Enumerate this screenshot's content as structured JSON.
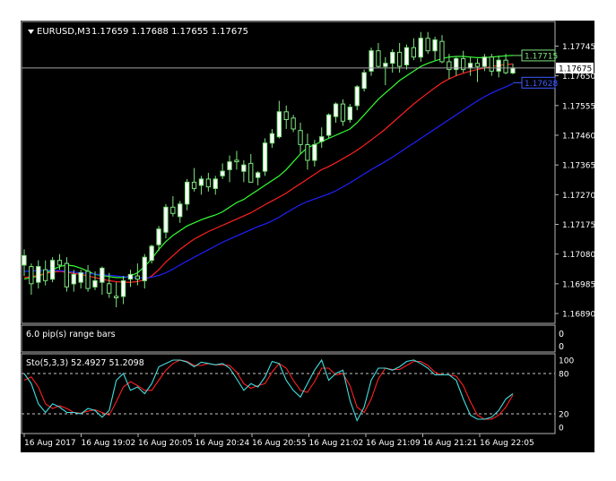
{
  "chart_data": {
    "type": "candlestick",
    "symbol_label": "EURUSD,M3",
    "ohlc_header": "1.17659 1.17688 1.17655 1.17675",
    "price_axis": {
      "ylim": [
        1.1687,
        1.17795
      ],
      "ticks": [
        "1.17745",
        "1.17650",
        "1.17555",
        "1.17460",
        "1.17365",
        "1.17270",
        "1.17175",
        "1.17080",
        "1.16985",
        "1.16890"
      ],
      "current_price": 1.17675,
      "current_price_label": "1.17675",
      "current_price_color": "#ffffff"
    },
    "right_markers": [
      {
        "value": 1.17715,
        "label": "1.17715",
        "color": "#7fe57f"
      },
      {
        "value": 1.17628,
        "label": "1.17628",
        "color": "#3d5cff"
      }
    ],
    "time_axis": {
      "labels": [
        "16 Aug 2017",
        "16 Aug 19:02",
        "16 Aug 20:05",
        "16 Aug 20:24",
        "16 Aug 20:55",
        "16 Aug 21:02",
        "16 Aug 21:09",
        "16 Aug 21:21",
        "16 Aug 22:05"
      ]
    },
    "colors": {
      "background": "#000000",
      "bull_candle": "#ffffff",
      "bear_candle": "#000000",
      "candle_outline": "#7fe57f",
      "ma_fast": "#33ff33",
      "ma_mid": "#ff2020",
      "ma_slow": "#2020ff",
      "stoch_main": "#44dddd",
      "stoch_signal": "#ff2020"
    },
    "candles": [
      [
        1.17045,
        1.17095,
        1.1701,
        1.17075
      ],
      [
        1.1704,
        1.1705,
        1.1695,
        1.16985
      ],
      [
        1.1699,
        1.1706,
        1.1697,
        1.1704
      ],
      [
        1.1703,
        1.1706,
        1.1698,
        1.16995
      ],
      [
        1.17,
        1.1707,
        1.1699,
        1.1706
      ],
      [
        1.1706,
        1.1708,
        1.1703,
        1.17045
      ],
      [
        1.1705,
        1.1707,
        1.1696,
        1.16975
      ],
      [
        1.16985,
        1.1703,
        1.1696,
        1.17015
      ],
      [
        1.1699,
        1.1703,
        1.1697,
        1.1702
      ],
      [
        1.17025,
        1.17045,
        1.1696,
        1.1697
      ],
      [
        1.16975,
        1.17025,
        1.16965,
        1.16995
      ],
      [
        1.1699,
        1.1704,
        1.1695,
        1.17035
      ],
      [
        1.16985,
        1.1702,
        1.1694,
        1.16955
      ],
      [
        1.16945,
        1.1699,
        1.1691,
        1.1694
      ],
      [
        1.16945,
        1.1701,
        1.1692,
        1.16995
      ],
      [
        1.17,
        1.1703,
        1.16975,
        1.17015
      ],
      [
        1.1701,
        1.1705,
        1.1698,
        1.17
      ],
      [
        1.16995,
        1.1708,
        1.1697,
        1.1707
      ],
      [
        1.1706,
        1.1711,
        1.1705,
        1.17105
      ],
      [
        1.1711,
        1.1717,
        1.1709,
        1.1716
      ],
      [
        1.1715,
        1.1724,
        1.1713,
        1.1723
      ],
      [
        1.1723,
        1.17265,
        1.172,
        1.1721
      ],
      [
        1.172,
        1.1725,
        1.1718,
        1.1724
      ],
      [
        1.1724,
        1.1732,
        1.1722,
        1.1731
      ],
      [
        1.1731,
        1.17355,
        1.1728,
        1.1729
      ],
      [
        1.173,
        1.1733,
        1.1727,
        1.1732
      ],
      [
        1.1732,
        1.1734,
        1.1728,
        1.17295
      ],
      [
        1.1729,
        1.1733,
        1.1727,
        1.1732
      ],
      [
        1.1733,
        1.1737,
        1.1732,
        1.17345
      ],
      [
        1.1735,
        1.17395,
        1.1731,
        1.17375
      ],
      [
        1.1738,
        1.1741,
        1.1735,
        1.17375
      ],
      [
        1.17345,
        1.1738,
        1.1731,
        1.17365
      ],
      [
        1.1737,
        1.174,
        1.1731,
        1.1731
      ],
      [
        1.17325,
        1.17345,
        1.173,
        1.1734
      ],
      [
        1.17345,
        1.1745,
        1.1733,
        1.17435
      ],
      [
        1.17435,
        1.1748,
        1.1742,
        1.17465
      ],
      [
        1.17455,
        1.1757,
        1.1745,
        1.17535
      ],
      [
        1.17535,
        1.17555,
        1.1748,
        1.1751
      ],
      [
        1.17515,
        1.17525,
        1.1747,
        1.1748
      ],
      [
        1.17475,
        1.175,
        1.174,
        1.1743
      ],
      [
        1.1743,
        1.17465,
        1.1735,
        1.1738
      ],
      [
        1.1738,
        1.17445,
        1.1736,
        1.1743
      ],
      [
        1.1744,
        1.17485,
        1.1742,
        1.17455
      ],
      [
        1.1746,
        1.1753,
        1.1745,
        1.17525
      ],
      [
        1.1752,
        1.17565,
        1.175,
        1.1756
      ],
      [
        1.1756,
        1.17575,
        1.1749,
        1.17505
      ],
      [
        1.1751,
        1.1756,
        1.175,
        1.1755
      ],
      [
        1.17555,
        1.1762,
        1.1754,
        1.17615
      ],
      [
        1.1761,
        1.1767,
        1.176,
        1.1766
      ],
      [
        1.17665,
        1.1774,
        1.1765,
        1.1773
      ],
      [
        1.1773,
        1.17755,
        1.17675,
        1.1768
      ],
      [
        1.1768,
        1.1771,
        1.1762,
        1.1769
      ],
      [
        1.1769,
        1.17735,
        1.1766,
        1.17725
      ],
      [
        1.17725,
        1.17755,
        1.1766,
        1.1768
      ],
      [
        1.17685,
        1.1775,
        1.1767,
        1.1774
      ],
      [
        1.1774,
        1.1777,
        1.177,
        1.1771
      ],
      [
        1.1771,
        1.1779,
        1.17695,
        1.1777
      ],
      [
        1.1777,
        1.1779,
        1.1772,
        1.1773
      ],
      [
        1.1773,
        1.17775,
        1.177,
        1.17765
      ],
      [
        1.1776,
        1.1778,
        1.1769,
        1.17695
      ],
      [
        1.17695,
        1.1772,
        1.1764,
        1.1767
      ],
      [
        1.1767,
        1.1771,
        1.1765,
        1.17705
      ],
      [
        1.17705,
        1.1773,
        1.1766,
        1.1767
      ],
      [
        1.17675,
        1.1771,
        1.1765,
        1.1769
      ],
      [
        1.1769,
        1.17705,
        1.1763,
        1.1768
      ],
      [
        1.1768,
        1.1772,
        1.17665,
        1.1771
      ],
      [
        1.1771,
        1.1772,
        1.1765,
        1.17665
      ],
      [
        1.17665,
        1.17715,
        1.17645,
        1.177
      ],
      [
        1.177,
        1.1772,
        1.17655,
        1.1766
      ],
      [
        1.17659,
        1.17688,
        1.17655,
        1.17675
      ]
    ],
    "moving_averages": [
      {
        "color": "#33ff33",
        "values": [
          1.17,
          1.17005,
          1.1701,
          1.17018,
          1.1703,
          1.1704,
          1.17045,
          1.17042,
          1.17035,
          1.17025,
          1.17015,
          1.17012,
          1.17008,
          1.17005,
          1.17005,
          1.1701,
          1.1702,
          1.1704,
          1.17065,
          1.17095,
          1.1712,
          1.1714,
          1.17155,
          1.1717,
          1.1718,
          1.1719,
          1.17198,
          1.17205,
          1.17215,
          1.1723,
          1.17245,
          1.17255,
          1.1727,
          1.17285,
          1.173,
          1.17315,
          1.1733,
          1.1735,
          1.17375,
          1.174,
          1.1742,
          1.1743,
          1.1744,
          1.1745,
          1.1746,
          1.1747,
          1.1748,
          1.175,
          1.17525,
          1.1755,
          1.17575,
          1.17595,
          1.17615,
          1.17635,
          1.1765,
          1.17665,
          1.1768,
          1.1769,
          1.17698,
          1.17705,
          1.1771,
          1.17712,
          1.17712,
          1.1771,
          1.17708,
          1.17708,
          1.1771,
          1.17712,
          1.17714,
          1.17715
        ]
      },
      {
        "color": "#ff2020",
        "values": [
          1.17005,
          1.17008,
          1.17012,
          1.17018,
          1.17022,
          1.17025,
          1.17022,
          1.17018,
          1.17015,
          1.1701,
          1.17005,
          1.17,
          1.16995,
          1.16992,
          1.1699,
          1.1699,
          1.16992,
          1.16998,
          1.1701,
          1.1703,
          1.17055,
          1.17075,
          1.17095,
          1.17112,
          1.17128,
          1.1714,
          1.17152,
          1.17162,
          1.17172,
          1.17182,
          1.17192,
          1.17202,
          1.17212,
          1.17225,
          1.17238,
          1.1725,
          1.17262,
          1.17275,
          1.1729,
          1.17305,
          1.1732,
          1.17335,
          1.1735,
          1.1736,
          1.17372,
          1.17385,
          1.17398,
          1.17412,
          1.17428,
          1.17445,
          1.17462,
          1.1748,
          1.175,
          1.1752,
          1.1754,
          1.1756,
          1.17578,
          1.17595,
          1.17612,
          1.17628,
          1.1764,
          1.1765,
          1.17658,
          1.17665,
          1.1767,
          1.17675,
          1.1768,
          1.17683,
          1.17686,
          1.17688
        ]
      },
      {
        "color": "#2020ff",
        "values": [
          1.17025,
          1.17026,
          1.17027,
          1.17028,
          1.17028,
          1.17027,
          1.17025,
          1.17022,
          1.1702,
          1.17018,
          1.17016,
          1.17014,
          1.17012,
          1.1701,
          1.17008,
          1.17006,
          1.17004,
          1.17004,
          1.17006,
          1.17012,
          1.1702,
          1.17032,
          1.17045,
          1.17058,
          1.1707,
          1.17082,
          1.17094,
          1.17106,
          1.17118,
          1.17128,
          1.17138,
          1.17148,
          1.17158,
          1.17168,
          1.17176,
          1.17186,
          1.17198,
          1.17212,
          1.17225,
          1.17238,
          1.17248,
          1.17256,
          1.17264,
          1.17272,
          1.17282,
          1.17295,
          1.17308,
          1.17322,
          1.17336,
          1.1735,
          1.17363,
          1.17376,
          1.1739,
          1.17405,
          1.1742,
          1.17435,
          1.1745,
          1.17465,
          1.1748,
          1.17495,
          1.1751,
          1.17525,
          1.1754,
          1.17555,
          1.1757,
          1.17583,
          1.17595,
          1.17605,
          1.17615,
          1.17625
        ]
      }
    ],
    "middle_panel": {
      "label": "6.0 pip(s) range bars",
      "ticks": [
        "0",
        "0"
      ]
    },
    "stochastic": {
      "label": "Sto(5,3,3) 52.4927 51.2098",
      "ylim": [
        0,
        100
      ],
      "ticks": [
        100,
        80,
        20,
        0
      ],
      "levels": [
        80,
        20
      ],
      "main": [
        80,
        65,
        35,
        22,
        35,
        30,
        22,
        22,
        20,
        28,
        25,
        15,
        25,
        70,
        80,
        55,
        60,
        50,
        65,
        90,
        95,
        100,
        100,
        97,
        90,
        97,
        95,
        93,
        95,
        88,
        72,
        55,
        65,
        60,
        75,
        98,
        95,
        70,
        55,
        45,
        65,
        85,
        100,
        70,
        80,
        85,
        40,
        10,
        30,
        70,
        88,
        88,
        85,
        90,
        98,
        100,
        95,
        88,
        78,
        78,
        78,
        70,
        42,
        18,
        12,
        12,
        15,
        25,
        42,
        50
      ],
      "signal": [
        70,
        75,
        60,
        35,
        28,
        32,
        28,
        22,
        21,
        24,
        26,
        22,
        18,
        38,
        60,
        68,
        62,
        55,
        55,
        70,
        85,
        95,
        100,
        98,
        92,
        92,
        95,
        93,
        93,
        92,
        82,
        65,
        58,
        62,
        65,
        82,
        95,
        88,
        70,
        55,
        52,
        68,
        88,
        88,
        78,
        80,
        62,
        30,
        22,
        42,
        72,
        88,
        86,
        86,
        92,
        98,
        98,
        92,
        82,
        78,
        78,
        76,
        62,
        38,
        18,
        12,
        12,
        18,
        30,
        48
      ]
    }
  }
}
